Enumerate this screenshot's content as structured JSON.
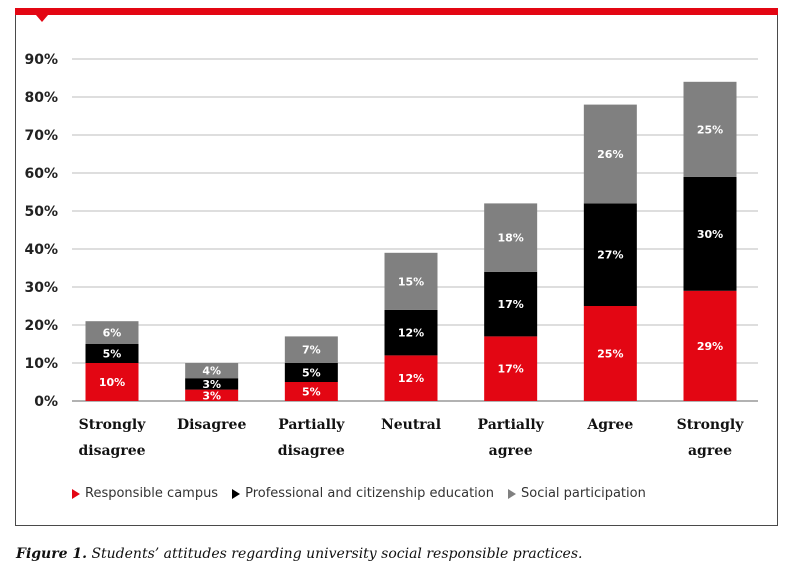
{
  "chart_data": {
    "type": "bar",
    "stacked": true,
    "categories": [
      [
        "Strongly",
        "disagree"
      ],
      [
        "Disagree"
      ],
      [
        "Partially",
        "disagree"
      ],
      [
        "Neutral"
      ],
      [
        "Partially",
        "agree"
      ],
      [
        "Agree"
      ],
      [
        "Strongly",
        "agree"
      ]
    ],
    "series": [
      {
        "name": "Responsible campus",
        "color": "#e30613",
        "values": [
          10,
          3,
          5,
          12,
          17,
          25,
          29
        ]
      },
      {
        "name": "Professional and citizenship education",
        "color": "#000000",
        "values": [
          5,
          3,
          5,
          12,
          17,
          27,
          30
        ]
      },
      {
        "name": "Social participation",
        "color": "#808080",
        "values": [
          6,
          4,
          7,
          15,
          18,
          26,
          25
        ]
      }
    ],
    "data_labels": [
      [
        "10%",
        "3%",
        "5%",
        "12%",
        "17%",
        "25%",
        "29%"
      ],
      [
        "5%",
        "3%",
        "5%",
        "12%",
        "17%",
        "27%",
        "30%"
      ],
      [
        "6%",
        "4%",
        "7%",
        "15%",
        "18%",
        "26%",
        "25%"
      ]
    ],
    "y_ticks": [
      "0%",
      "10%",
      "20%",
      "30%",
      "40%",
      "50%",
      "60%",
      "70%",
      "80%",
      "90%"
    ],
    "ylim": [
      0,
      90
    ],
    "grid": true,
    "legend_position": "bottom"
  },
  "legend": [
    {
      "label": "Responsible campus",
      "color": "#e30613"
    },
    {
      "label": "Professional and citizenship education",
      "color": "#000000"
    },
    {
      "label": "Social participation",
      "color": "#808080"
    }
  ],
  "caption": {
    "prefix": "Figure 1.",
    "text": " Students’ attitudes regarding university social responsible practices."
  }
}
